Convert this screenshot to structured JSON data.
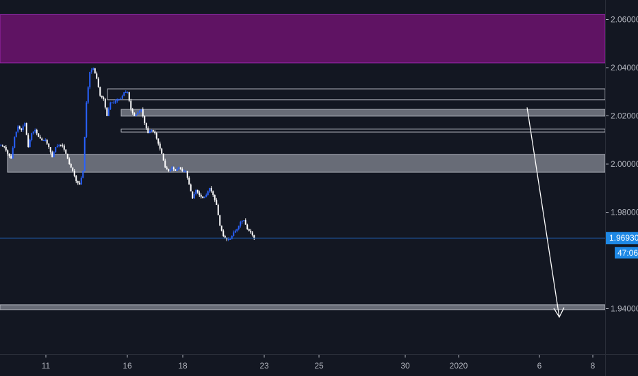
{
  "chart_data": {
    "type": "candlestick",
    "colors": {
      "background": "#131722",
      "up": "#2962ff",
      "down": "#ffffff",
      "zone_supply": "#5f1363",
      "zone": "#787b86",
      "last_price": "#1e88e5"
    },
    "y_ticks": [
      "2.06000",
      "2.04000",
      "2.02000",
      "2.00000",
      "1.98000",
      "1.94000"
    ],
    "y_tick_values": [
      2.06,
      2.04,
      2.02,
      2.0,
      1.98,
      1.94
    ],
    "ylim": [
      1.9165,
      2.07
    ],
    "x_ticks": [
      "11",
      "16",
      "18",
      "23",
      "25",
      "30",
      "2020",
      "6",
      "8"
    ],
    "closes": [
      2.0077,
      2.0071,
      2.0043,
      2.0023,
      2.0113,
      2.0156,
      2.0142,
      2.017,
      2.0071,
      2.0128,
      2.0142,
      2.0113,
      2.0099,
      2.0099,
      2.0071,
      2.0028,
      2.0071,
      2.0079,
      2.0077,
      2.0043,
      2.0,
      1.9972,
      1.9929,
      1.9915,
      1.9972,
      2.0255,
      2.0383,
      2.0397,
      2.0355,
      2.0284,
      2.027,
      2.0199,
      2.0255,
      2.0255,
      2.027,
      2.027,
      2.0298,
      2.0298,
      2.0227,
      2.0199,
      2.0213,
      2.0227,
      2.017,
      2.0128,
      2.0142,
      2.0128,
      2.0085,
      2.0043,
      1.9986,
      1.9972,
      1.9986,
      1.9972,
      1.9986,
      1.9972,
      1.9972,
      1.9915,
      1.9858,
      1.9892,
      1.9872,
      1.9858,
      1.9872,
      1.9901,
      1.9872,
      1.983,
      1.9745,
      1.9702,
      1.9688,
      1.9688,
      1.9716,
      1.973,
      1.9759,
      1.9767,
      1.973,
      1.9716,
      1.9693
    ],
    "zones": [
      {
        "kind": "supply",
        "top": 2.062,
        "bottom": 2.042
      },
      {
        "kind": "outline",
        "top": 2.0312,
        "bottom": 2.0267
      },
      {
        "kind": "filled",
        "top": 2.0227,
        "bottom": 2.0199
      },
      {
        "kind": "outline-thin",
        "top": 2.0145,
        "bottom": 2.0133
      },
      {
        "kind": "filled",
        "top": 2.004,
        "bottom": 1.9966
      },
      {
        "kind": "filled",
        "top": 1.9416,
        "bottom": 1.9396
      }
    ],
    "projection_arrow": {
      "from_price": 2.0235,
      "to_price": 1.9365
    },
    "last_price": "1.96930",
    "last_price_value": 1.9693,
    "countdown": "47:06"
  }
}
